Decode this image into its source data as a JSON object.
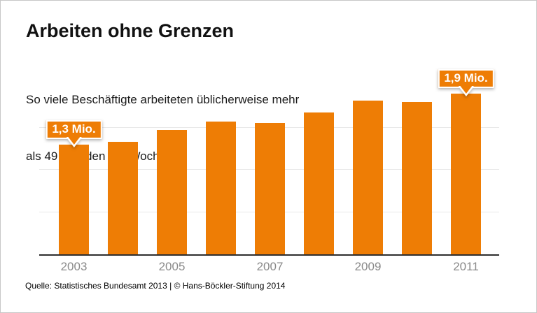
{
  "card": {
    "title": "Arbeiten ohne Grenzen",
    "subtitle_line1": "So viele Beschäftigte arbeiteten üblicherweise mehr",
    "subtitle_line2": "als 49 Stunden pro Woche  ...",
    "source": "Quelle: Statistisches Bundesamt 2013 | © Hans-Böckler-Stiftung 2014"
  },
  "colors": {
    "bar_orange": "#ee7d05",
    "axis": "#2e2e2e",
    "gridline": "#e9e9e9",
    "year_label": "#8a8a8a",
    "badge_bg": "#ee7d05",
    "badge_border": "#ffffff",
    "badge_text": "#ffffff"
  },
  "chart_data": {
    "type": "bar",
    "title": "Arbeiten ohne Grenzen",
    "subtitle": "So viele Beschäftigte arbeiteten üblicherweise mehr als 49 Stunden pro Woche ...",
    "categories": [
      "2003",
      "2004",
      "2005",
      "2006",
      "2007",
      "2008",
      "2009",
      "2010",
      "2011"
    ],
    "values": [
      1.3,
      1.33,
      1.47,
      1.57,
      1.55,
      1.68,
      1.82,
      1.8,
      1.9
    ],
    "unit": "Mio.",
    "xlabel": "",
    "ylabel": "",
    "ylim": [
      0,
      2.0
    ],
    "grid": true,
    "gridlines_at": [
      0.5,
      1.0,
      1.5
    ],
    "x_tick_labels": [
      "2003",
      "2005",
      "2007",
      "2009",
      "2011"
    ],
    "x_tick_bar_indexes": [
      0,
      2,
      4,
      6,
      8
    ],
    "annotations": [
      {
        "bar_index": 0,
        "label": "1,3 Mio."
      },
      {
        "bar_index": 8,
        "label": "1,9 Mio."
      }
    ]
  }
}
